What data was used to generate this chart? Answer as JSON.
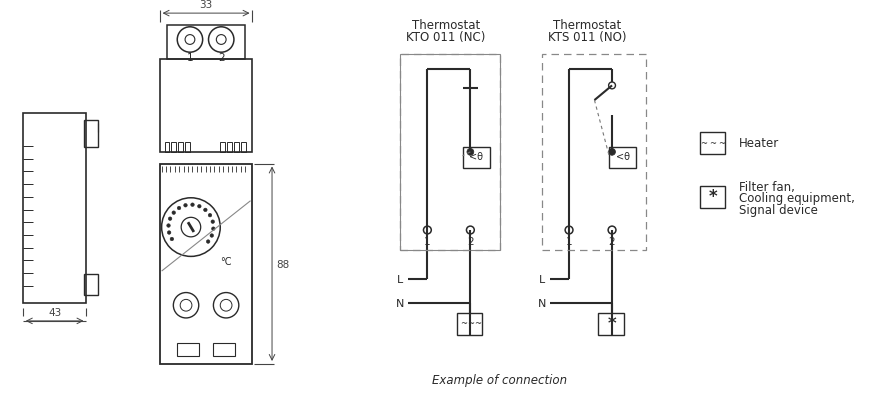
{
  "bg_color": "#ffffff",
  "line_color": "#2a2a2a",
  "dim_color": "#444444",
  "fig_width": 8.8,
  "fig_height": 4.02,
  "texts": {
    "dim_33": "33",
    "dim_43": "43",
    "dim_88": "88",
    "label1": "1",
    "label2": "2",
    "celsius": "°C",
    "thermo_kto_line1": "Thermostat",
    "thermo_kto_line2": "KTO 011 (NC)",
    "thermo_kts_line1": "Thermostat",
    "thermo_kts_line2": "KTS 011 (NO)",
    "L_left": "L",
    "N_left": "N",
    "L_right": "L",
    "N_right": "N",
    "example": "Example of connection",
    "heater_label": "Heater",
    "fan_label1": "Filter fan,",
    "fan_label2": "Cooling equipment,",
    "fan_label3": "Signal device"
  }
}
